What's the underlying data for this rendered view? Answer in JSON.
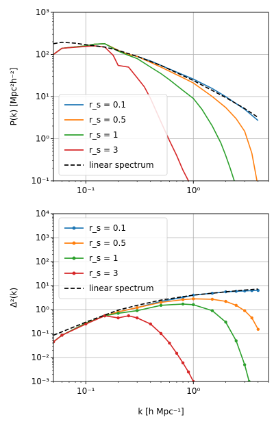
{
  "chart_data": [
    {
      "type": "line",
      "xscale": "log",
      "yscale": "log",
      "xlim": [
        0.05,
        5
      ],
      "ylim": [
        0.1,
        1000
      ],
      "ylabel": "P(k) [Mpc²h⁻²]",
      "xlabel": "",
      "grid": true,
      "legend": "lower-left",
      "xticks": [
        "10⁻¹",
        "10⁰"
      ],
      "yticks": [
        "10⁻¹",
        "10⁰",
        "10¹",
        "10²",
        "10³"
      ],
      "markers": false,
      "series": [
        {
          "name": "r_s = 0.1",
          "color": "#1f77b4",
          "dash": false,
          "x": [
            0.05,
            0.06,
            0.1,
            0.12,
            0.15,
            0.2,
            0.25,
            0.3,
            0.4,
            0.5,
            0.6,
            0.8,
            1.0,
            1.5,
            2.0,
            2.5,
            3.0,
            4.0
          ],
          "y": [
            100,
            140,
            160,
            175,
            180,
            125,
            100,
            90,
            70,
            55,
            45,
            33,
            26,
            15.5,
            10,
            6.8,
            5,
            2.7
          ]
        },
        {
          "name": "r_s = 0.5",
          "color": "#ff7f0e",
          "dash": false,
          "x": [
            0.05,
            0.06,
            0.1,
            0.12,
            0.15,
            0.2,
            0.25,
            0.3,
            0.4,
            0.5,
            0.6,
            0.8,
            1.0,
            1.5,
            2.0,
            2.5,
            3.0,
            3.5,
            3.9
          ],
          "y": [
            100,
            140,
            160,
            175,
            180,
            125,
            100,
            90,
            65,
            50,
            40,
            28,
            21,
            10,
            5.5,
            3,
            1.5,
            0.45,
            0.1
          ]
        },
        {
          "name": "r_s = 1",
          "color": "#2ca02c",
          "dash": false,
          "x": [
            0.05,
            0.06,
            0.1,
            0.12,
            0.15,
            0.2,
            0.25,
            0.3,
            0.4,
            0.5,
            0.6,
            0.8,
            1.0,
            1.2,
            1.5,
            1.8,
            2.0,
            2.2,
            2.4
          ],
          "y": [
            100,
            140,
            160,
            175,
            180,
            120,
            95,
            80,
            50,
            35,
            25,
            14,
            9,
            5,
            2,
            0.8,
            0.4,
            0.2,
            0.1
          ]
        },
        {
          "name": "r_s = 3",
          "color": "#d62728",
          "dash": false,
          "x": [
            0.05,
            0.06,
            0.1,
            0.12,
            0.15,
            0.18,
            0.2,
            0.25,
            0.3,
            0.35,
            0.4,
            0.5,
            0.6,
            0.7,
            0.8,
            0.9
          ],
          "y": [
            100,
            140,
            155,
            160,
            150,
            95,
            55,
            50,
            28,
            17,
            9,
            2.5,
            0.9,
            0.4,
            0.18,
            0.1
          ]
        },
        {
          "name": "linear spectrum",
          "color": "#000000",
          "dash": true,
          "x": [
            0.05,
            0.06,
            0.08,
            0.1,
            0.15,
            0.2,
            0.3,
            0.5,
            1.0,
            2.0,
            3.0,
            4.0
          ],
          "y": [
            180,
            195,
            185,
            170,
            150,
            125,
            90,
            55,
            24,
            9.5,
            5.2,
            3.2
          ]
        }
      ]
    },
    {
      "type": "line",
      "xscale": "log",
      "yscale": "log",
      "xlim": [
        0.05,
        5
      ],
      "ylim": [
        0.001,
        10000
      ],
      "ylabel": "Δ²(k)",
      "xlabel": "k [h Mpc⁻¹]",
      "grid": true,
      "legend": "upper-left",
      "xticks": [
        "10⁻¹",
        "10⁰"
      ],
      "yticks": [
        "10⁻³",
        "10⁻²",
        "10⁻¹",
        "10⁰",
        "10¹",
        "10²",
        "10³",
        "10⁴"
      ],
      "markers": true,
      "series": [
        {
          "name": "r_s = 0.1",
          "color": "#1f77b4",
          "dash": false,
          "x": [
            0.05,
            0.06,
            0.1,
            0.15,
            0.2,
            0.3,
            0.5,
            0.8,
            1.0,
            1.5,
            2.0,
            2.5,
            3.0,
            3.5,
            4.0
          ],
          "y": [
            0.045,
            0.085,
            0.27,
            0.55,
            0.8,
            1.2,
            2.2,
            3.2,
            4.0,
            4.8,
            5.5,
            5.8,
            6.0,
            6.2,
            6.3
          ]
        },
        {
          "name": "r_s = 0.5",
          "color": "#ff7f0e",
          "dash": false,
          "x": [
            0.05,
            0.06,
            0.1,
            0.15,
            0.2,
            0.3,
            0.5,
            0.8,
            1.0,
            1.5,
            2.0,
            2.5,
            3.0,
            3.5,
            4.0
          ],
          "y": [
            0.045,
            0.085,
            0.27,
            0.55,
            0.8,
            1.2,
            2.0,
            2.6,
            2.8,
            2.7,
            2.2,
            1.5,
            0.9,
            0.45,
            0.15
          ]
        },
        {
          "name": "r_s = 1",
          "color": "#2ca02c",
          "dash": false,
          "x": [
            0.05,
            0.06,
            0.1,
            0.15,
            0.2,
            0.3,
            0.5,
            0.8,
            1.0,
            1.5,
            2.0,
            2.5,
            3.0,
            3.3
          ],
          "y": [
            0.045,
            0.085,
            0.27,
            0.55,
            0.7,
            0.9,
            1.5,
            1.7,
            1.6,
            0.9,
            0.3,
            0.05,
            0.005,
            0.001
          ]
        },
        {
          "name": "r_s = 3",
          "color": "#d62728",
          "dash": false,
          "x": [
            0.05,
            0.06,
            0.1,
            0.15,
            0.2,
            0.25,
            0.3,
            0.4,
            0.5,
            0.6,
            0.7,
            0.8,
            0.9,
            1.0
          ],
          "y": [
            0.045,
            0.085,
            0.25,
            0.55,
            0.45,
            0.55,
            0.45,
            0.25,
            0.1,
            0.04,
            0.015,
            0.006,
            0.0025,
            0.001
          ]
        },
        {
          "name": "linear spectrum",
          "color": "#000000",
          "dash": true,
          "x": [
            0.05,
            0.1,
            0.2,
            0.3,
            0.5,
            1.0,
            2.0,
            3.0,
            4.0
          ],
          "y": [
            0.085,
            0.3,
            0.95,
            1.5,
            2.5,
            4.0,
            5.5,
            6.5,
            7.2
          ]
        }
      ]
    }
  ]
}
